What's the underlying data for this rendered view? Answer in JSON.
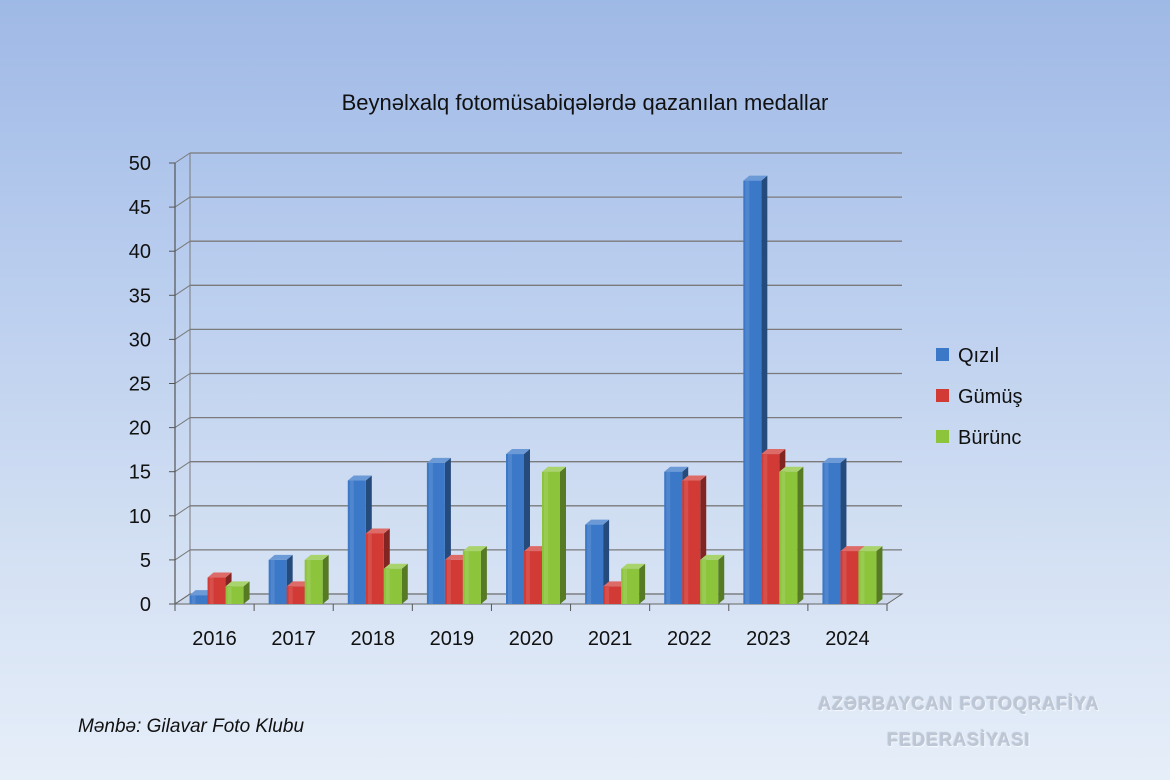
{
  "source_note": "Mənbə: Gilavar Foto Klubu",
  "watermark": {
    "line1": "AZƏRBAYCAN FOTOQRAFİYA",
    "line2": "FEDERASİYASI"
  },
  "chart_data": {
    "type": "bar",
    "title": "Beynəlxalq fotomüsabiqələrdə qazanılan medallar",
    "xlabel": "",
    "ylabel": "",
    "categories": [
      "2016",
      "2017",
      "2018",
      "2019",
      "2020",
      "2021",
      "2022",
      "2023",
      "2024"
    ],
    "ylim": [
      0,
      50
    ],
    "yticks": [
      0,
      5,
      10,
      15,
      20,
      25,
      30,
      35,
      40,
      45,
      50
    ],
    "grid": true,
    "legend_position": "right",
    "series": [
      {
        "name": "Qızıl",
        "color": "#3b78c8",
        "values": [
          1,
          5,
          14,
          16,
          17,
          9,
          15,
          48,
          16
        ]
      },
      {
        "name": "Gümüş",
        "color": "#d23a36",
        "values": [
          3,
          2,
          8,
          5,
          6,
          2,
          14,
          17,
          6
        ]
      },
      {
        "name": "Bürünc",
        "color": "#8cc43c",
        "values": [
          2,
          5,
          4,
          6,
          15,
          4,
          5,
          15,
          6
        ]
      }
    ]
  }
}
